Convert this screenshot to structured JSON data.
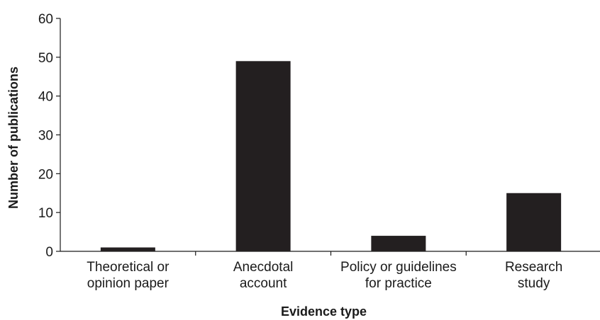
{
  "chart_data": {
    "type": "bar",
    "title": "",
    "xlabel": "Evidence type",
    "ylabel": "Number of publications",
    "categories": [
      [
        "Theoretical or",
        "opinion paper"
      ],
      [
        "Anecdotal",
        "account"
      ],
      [
        "Policy or guidelines",
        "for practice"
      ],
      [
        "Research",
        "study"
      ]
    ],
    "values": [
      1,
      49,
      4,
      15
    ],
    "ylim": [
      0,
      60
    ],
    "yticks": [
      0,
      10,
      20,
      30,
      40,
      50,
      60
    ],
    "bar_color": "#231f20",
    "grid": false,
    "legend": "none"
  }
}
